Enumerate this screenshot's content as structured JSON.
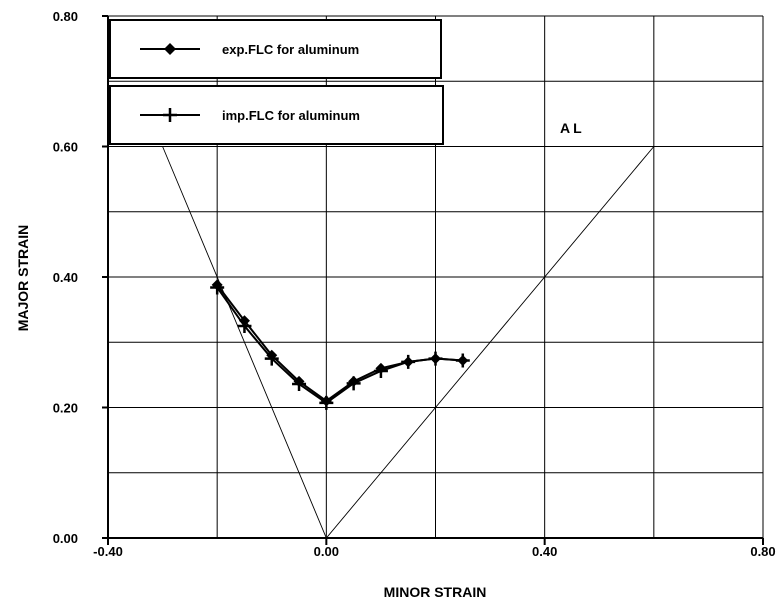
{
  "chart_data": {
    "type": "line",
    "xlabel": "MINOR STRAIN",
    "ylabel": "MAJOR STRAIN",
    "xlim": [
      -0.4,
      0.8
    ],
    "ylim": [
      0.0,
      0.8
    ],
    "x_ticks": [
      "-0.40",
      "0.00",
      "0.40",
      "0.80"
    ],
    "y_ticks": [
      "0.00",
      "0.20",
      "0.40",
      "0.60",
      "0.80"
    ],
    "grid": true,
    "legend_position": "top-left",
    "annotation": "AL",
    "reference_lines": [
      {
        "x": [
          -0.3,
          0.0,
          0.6
        ],
        "y": [
          0.6,
          0.0,
          0.6
        ]
      }
    ],
    "series": [
      {
        "name": "exp.FLC for aluminum",
        "marker": "diamond",
        "x": [
          -0.2,
          -0.15,
          -0.1,
          -0.05,
          0.0,
          0.05,
          0.1,
          0.15,
          0.2,
          0.25
        ],
        "y": [
          0.388,
          0.333,
          0.28,
          0.24,
          0.21,
          0.24,
          0.26,
          0.27,
          0.275,
          0.272
        ]
      },
      {
        "name": "imp.FLC for aluminum",
        "marker": "plus",
        "x": [
          -0.2,
          -0.15,
          -0.1,
          -0.05,
          0.0,
          0.05,
          0.1,
          0.15,
          0.2,
          0.25
        ],
        "y": [
          0.384,
          0.325,
          0.275,
          0.236,
          0.207,
          0.237,
          0.256,
          0.27,
          0.275,
          0.272
        ]
      }
    ]
  }
}
